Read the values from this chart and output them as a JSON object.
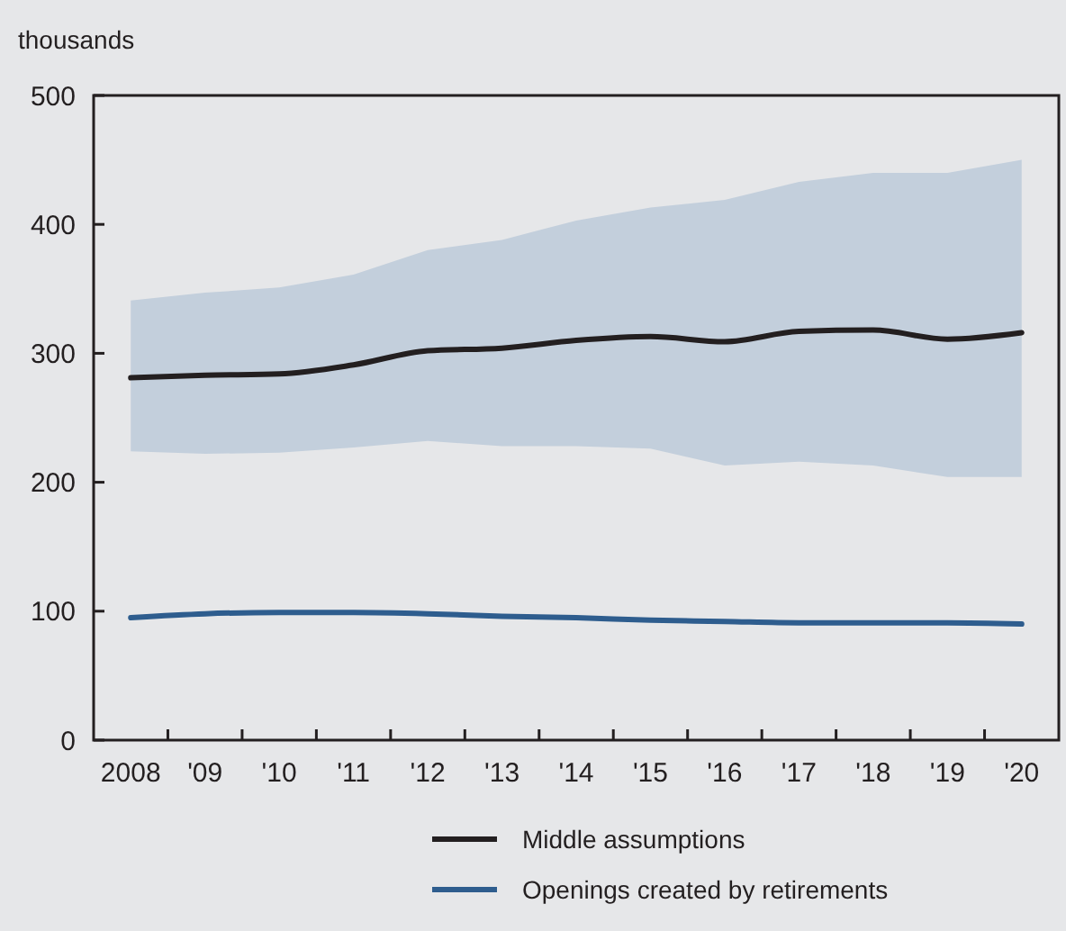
{
  "chart_data": {
    "type": "line",
    "ylabel": "thousands",
    "categories": [
      "2008",
      "'09",
      "'10",
      "'11",
      "'12",
      "'13",
      "'14",
      "'15",
      "'16",
      "'17",
      "'18",
      "'19",
      "'20"
    ],
    "series": [
      {
        "name": "Middle assumptions",
        "color": "#231f20",
        "values": [
          281,
          283,
          284,
          291,
          302,
          304,
          310,
          313,
          309,
          317,
          318,
          311,
          316
        ],
        "lower": [
          224,
          222,
          223,
          227,
          232,
          228,
          228,
          226,
          213,
          216,
          213,
          204,
          204
        ],
        "upper": [
          341,
          347,
          351,
          361,
          380,
          388,
          403,
          413,
          419,
          433,
          440,
          440,
          450
        ]
      },
      {
        "name": "Openings created by retirements",
        "color": "#2e5d8e",
        "values": [
          95,
          98,
          99,
          99,
          98,
          96,
          95,
          93,
          92,
          91,
          91,
          91,
          90
        ]
      }
    ],
    "ylim": [
      0,
      500
    ],
    "yticks": [
      0,
      100,
      200,
      300,
      400,
      500
    ],
    "grid": false,
    "legend": "bottom"
  }
}
